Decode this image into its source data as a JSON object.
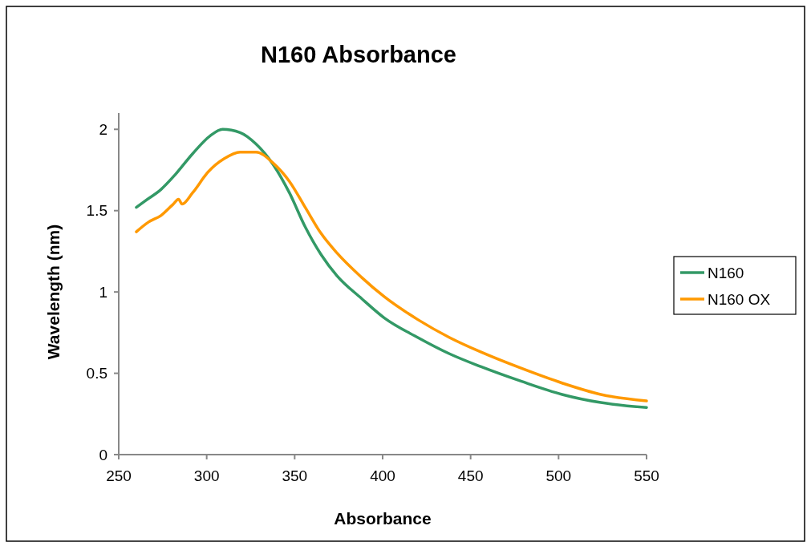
{
  "chart_data": {
    "type": "line",
    "title": "N160 Absorbance",
    "xlabel": "Absorbance",
    "ylabel": "Wavelength (nm)",
    "xlim": [
      250,
      550
    ],
    "xticks": [
      250,
      300,
      350,
      400,
      450,
      500,
      550
    ],
    "ylim": [
      0,
      2.1
    ],
    "yticks": [
      0,
      0.5,
      1,
      1.5,
      2
    ],
    "grid": false,
    "legend": "right",
    "marker": "none",
    "line_style": "solid",
    "series": [
      {
        "name": "N160",
        "color": "#339966",
        "x": [
          260,
          265,
          274,
          282,
          292,
          302,
          309,
          319,
          328,
          338,
          347,
          356,
          365,
          374,
          388,
          401,
          420,
          438,
          456,
          479,
          502,
          524,
          550
        ],
        "values": [
          1.52,
          1.56,
          1.63,
          1.72,
          1.85,
          1.96,
          2.0,
          1.98,
          1.91,
          1.78,
          1.61,
          1.4,
          1.23,
          1.1,
          0.96,
          0.84,
          0.72,
          0.62,
          0.54,
          0.45,
          0.37,
          0.32,
          0.29
        ]
      },
      {
        "name": "N160 OX",
        "color": "#ff9900",
        "x": [
          260,
          267,
          274,
          281,
          284,
          286,
          292,
          301,
          310,
          319,
          328,
          338,
          347,
          356,
          365,
          374,
          388,
          401,
          420,
          438,
          456,
          479,
          502,
          524,
          550
        ],
        "values": [
          1.37,
          1.43,
          1.47,
          1.54,
          1.57,
          1.54,
          1.61,
          1.74,
          1.82,
          1.86,
          1.86,
          1.79,
          1.68,
          1.52,
          1.36,
          1.24,
          1.09,
          0.97,
          0.83,
          0.72,
          0.63,
          0.53,
          0.44,
          0.37,
          0.33
        ]
      }
    ]
  }
}
